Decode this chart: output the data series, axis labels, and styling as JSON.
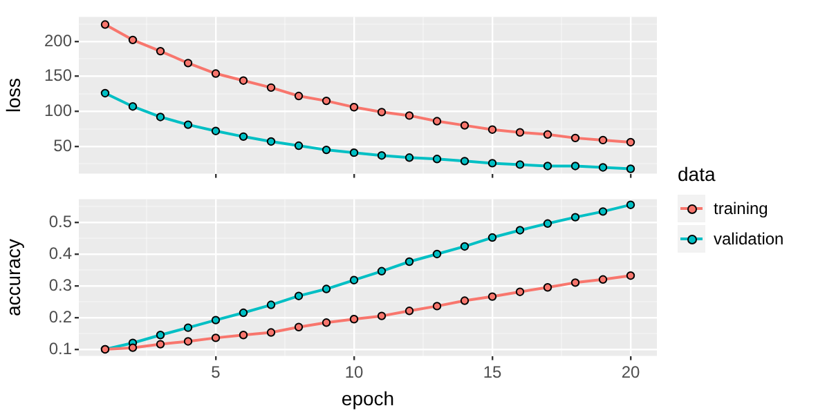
{
  "chart_data": [
    {
      "type": "line",
      "ylabel": "loss",
      "legend": "right",
      "legend_title": "data",
      "tick_labels": "y",
      "grid": true,
      "marker": "circle",
      "line_style": "solid",
      "x": [
        1,
        2,
        3,
        4,
        5,
        6,
        7,
        8,
        9,
        10,
        11,
        12,
        13,
        14,
        15,
        16,
        17,
        18,
        19,
        20
      ],
      "xlim": [
        0.05,
        20.95
      ],
      "xticks": [
        {
          "value": 2.5,
          "label": null
        },
        5,
        {
          "value": 7.5,
          "label": null
        },
        10,
        {
          "value": 12.5,
          "label": null
        },
        15,
        {
          "value": 17.5,
          "label": null
        },
        20
      ],
      "ylim": [
        11,
        235
      ],
      "yticks": [
        {
          "value": 25,
          "label": null
        },
        50,
        {
          "value": 75,
          "label": null
        },
        100,
        {
          "value": 125,
          "label": null
        },
        150,
        {
          "value": 175,
          "label": null
        },
        200,
        {
          "value": 225,
          "label": null
        }
      ],
      "series": [
        {
          "name": "training",
          "color": "#f8766d",
          "values": [
            224,
            202,
            186,
            169,
            154,
            144,
            134,
            122,
            115,
            106,
            99,
            94,
            86,
            80,
            74,
            70,
            67,
            62,
            59,
            56
          ]
        },
        {
          "name": "validation",
          "color": "#00bfc4",
          "values": [
            126,
            107,
            92,
            81,
            72,
            64,
            57,
            51,
            45,
            41,
            37,
            34,
            32,
            29,
            26,
            24,
            22,
            22,
            20,
            18
          ]
        }
      ]
    },
    {
      "type": "line",
      "ylabel": "accuracy",
      "xlabel": "epoch",
      "grid": true,
      "marker": "circle",
      "line_style": "solid",
      "x": [
        1,
        2,
        3,
        4,
        5,
        6,
        7,
        8,
        9,
        10,
        11,
        12,
        13,
        14,
        15,
        16,
        17,
        18,
        19,
        20
      ],
      "xlim": [
        0.05,
        20.95
      ],
      "xticks": [
        {
          "value": 2.5,
          "label": null
        },
        5,
        {
          "value": 7.5,
          "label": null
        },
        10,
        {
          "value": 12.5,
          "label": null
        },
        15,
        {
          "value": 17.5,
          "label": null
        },
        20
      ],
      "ylim": [
        0.079,
        0.573
      ],
      "yticks": [
        0.1,
        {
          "value": 0.15,
          "label": null
        },
        0.2,
        {
          "value": 0.25,
          "label": null
        },
        0.3,
        {
          "value": 0.35,
          "label": null
        },
        0.4,
        {
          "value": 0.45,
          "label": null
        },
        0.5,
        {
          "value": 0.55,
          "label": null
        }
      ],
      "series": [
        {
          "name": "training",
          "color": "#f8766d",
          "values": [
            0.1,
            0.105,
            0.116,
            0.125,
            0.136,
            0.145,
            0.153,
            0.17,
            0.184,
            0.195,
            0.205,
            0.221,
            0.236,
            0.253,
            0.266,
            0.281,
            0.295,
            0.31,
            0.32,
            0.332
          ]
        },
        {
          "name": "validation",
          "color": "#00bfc4",
          "values": [
            0.1,
            0.12,
            0.145,
            0.168,
            0.192,
            0.215,
            0.24,
            0.268,
            0.29,
            0.318,
            0.346,
            0.376,
            0.4,
            0.424,
            0.452,
            0.475,
            0.496,
            0.516,
            0.534,
            0.555
          ]
        }
      ]
    }
  ]
}
